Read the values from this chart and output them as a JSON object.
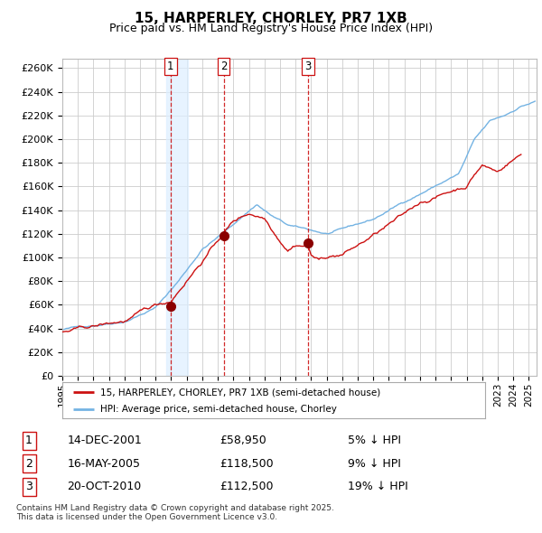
{
  "title": "15, HARPERLEY, CHORLEY, PR7 1XB",
  "subtitle": "Price paid vs. HM Land Registry's House Price Index (HPI)",
  "ylabel_ticks": [
    "£0",
    "£20K",
    "£40K",
    "£60K",
    "£80K",
    "£100K",
    "£120K",
    "£140K",
    "£160K",
    "£180K",
    "£200K",
    "£220K",
    "£240K",
    "£260K"
  ],
  "ytick_values": [
    0,
    20000,
    40000,
    60000,
    80000,
    100000,
    120000,
    140000,
    160000,
    180000,
    200000,
    220000,
    240000,
    260000
  ],
  "ylim": [
    0,
    268000
  ],
  "xlim_start": 1995.0,
  "xlim_end": 2025.5,
  "hpi_color": "#74b3e3",
  "sold_color": "#cc1111",
  "marker_color": "#8b0000",
  "vline_color": "#cc1111",
  "shade_color": "#ddeeff",
  "grid_color": "#cccccc",
  "bg_color": "#ffffff",
  "legend_label_sold": "15, HARPERLEY, CHORLEY, PR7 1XB (semi-detached house)",
  "legend_label_hpi": "HPI: Average price, semi-detached house, Chorley",
  "transactions": [
    {
      "num": 1,
      "date": "14-DEC-2001",
      "price": 58950,
      "pct": "5%",
      "direction": "↓",
      "x": 2001.96
    },
    {
      "num": 2,
      "date": "16-MAY-2005",
      "price": 118500,
      "pct": "9%",
      "direction": "↓",
      "x": 2005.37
    },
    {
      "num": 3,
      "date": "20-OCT-2010",
      "price": 112500,
      "pct": "19%",
      "direction": "↓",
      "x": 2010.8
    }
  ],
  "footer": "Contains HM Land Registry data © Crown copyright and database right 2025.\nThis data is licensed under the Open Government Licence v3.0.",
  "xticks": [
    1995,
    1996,
    1997,
    1998,
    1999,
    2000,
    2001,
    2002,
    2003,
    2004,
    2005,
    2006,
    2007,
    2008,
    2009,
    2010,
    2011,
    2012,
    2013,
    2014,
    2015,
    2016,
    2017,
    2018,
    2019,
    2020,
    2021,
    2022,
    2023,
    2024,
    2025
  ]
}
